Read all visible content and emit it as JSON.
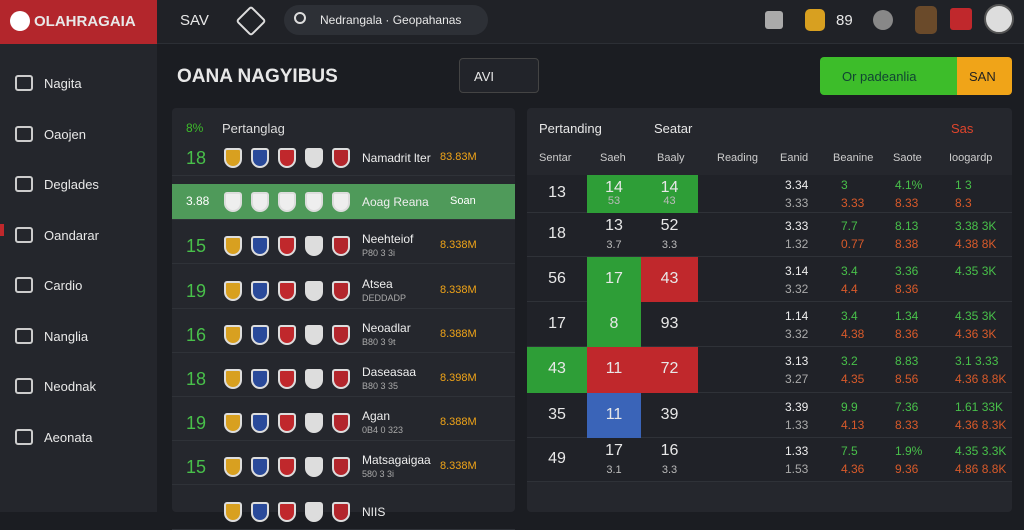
{
  "header": {
    "logo": "OLAHRAGAIA",
    "nav": "SAV",
    "search": "Nedrangala · Geopahanas",
    "badge": "89"
  },
  "sidebar": [
    "Nagita",
    "Oaojen",
    "Deglades",
    "Oandarar",
    "Cardio",
    "Nanglia",
    "Neodnak",
    "Aeonata"
  ],
  "page": {
    "title": "OANA NAGYIBUS",
    "center_button": "AVI",
    "primary_button": "Or padeanlia",
    "secondary_button": "SAN"
  },
  "left_panel": {
    "header": {
      "badge": "8%",
      "title": "Pertanglag"
    },
    "rows": [
      {
        "num": "18",
        "name": "Namadrit lter",
        "odds": "83.83M"
      },
      {
        "num": "3.88",
        "name": "Aoag Reana",
        "odds": "Soan"
      },
      {
        "num": "15",
        "name": "Neehteiof",
        "sub": "P80 3 3i",
        "odds": "8.338M"
      },
      {
        "num": "19",
        "name": "Atsea",
        "sub": "DEDDADP",
        "odds": "8.338M"
      },
      {
        "num": "16",
        "name": "Neoadlar",
        "sub": "B80 3 9t",
        "odds": "8.388M"
      },
      {
        "num": "18",
        "name": "Daseasaa",
        "sub": "B80 3 35",
        "odds": "8.398M"
      },
      {
        "num": "19",
        "name": "Agan",
        "sub": "0B4 0 323",
        "odds": "8.388M"
      },
      {
        "num": "15",
        "name": "Matsagaigaa",
        "sub": "580 3 3i",
        "odds": "8.338M"
      },
      {
        "name": "NIIS"
      }
    ]
  },
  "right_panel": {
    "header": {
      "title": "Pertanding",
      "subtitle": "Seatar",
      "action": "Sas"
    },
    "columns": [
      "Sentar",
      "Saeh",
      "Baaly",
      "Reading",
      "Eanid",
      "Beanine",
      "Saote",
      "Ioogardp"
    ],
    "rows": [
      {
        "rank": "13",
        "a": "14",
        "a_sub": "53",
        "a_color": "#2e9e37",
        "b": "14",
        "b_sub": "43",
        "b_color": "#2e9e37",
        "c": [
          "3.34",
          "3.33"
        ],
        "d": [
          "3",
          "3.33"
        ],
        "e": [
          "4.1%",
          "8.33"
        ],
        "f": [
          "1 3",
          "8.3"
        ]
      },
      {
        "rank": "18",
        "a": "13",
        "a_sub": "3.7",
        "b": "52",
        "b_sub": "3.3",
        "c": [
          "3.33",
          "1.32"
        ],
        "d": [
          "7.7",
          "0.77"
        ],
        "e": [
          "8.13",
          "8.38"
        ],
        "f": [
          "3.38 3K",
          "4.38 8K"
        ]
      },
      {
        "rank": "56",
        "a": "17",
        "a_color": "#2e9e37",
        "b": "43",
        "b_color": "#c0282c",
        "c": [
          "3.14",
          "3.32"
        ],
        "d": [
          "3.4",
          "4.4"
        ],
        "e": [
          "3.36",
          "8.36"
        ],
        "f": [
          "4.35 3K"
        ]
      },
      {
        "rank": "17",
        "a": "8",
        "a_color": "#2e9e37",
        "b": "93",
        "c": [
          "1.14",
          "3.32"
        ],
        "d": [
          "3.4",
          "4.38"
        ],
        "e": [
          "1.34",
          "8.36"
        ],
        "f": [
          "4.35 3K",
          "4.36 3K"
        ]
      },
      {
        "rank": "43",
        "rank_color": "#2e9e37",
        "a": "11",
        "a_color": "#c0282c",
        "b": "72",
        "b_color": "#c0282c",
        "c": [
          "3.13",
          "3.27"
        ],
        "d": [
          "3.2",
          "4.35"
        ],
        "e": [
          "8.83",
          "8.56"
        ],
        "f": [
          "3.1 3.33",
          "4.36 8.8K"
        ]
      },
      {
        "rank": "35",
        "a": "11",
        "a_color": "#3a64b8",
        "b": "39",
        "c": [
          "3.39",
          "1.33"
        ],
        "d": [
          "9.9",
          "4.13"
        ],
        "e": [
          "7.36",
          "8.33"
        ],
        "f": [
          "1.61 33K",
          "4.36 8.3K"
        ]
      },
      {
        "rank": "49",
        "a": "17",
        "a_sub": "3.1",
        "b": "16",
        "b_sub": "3.3",
        "c": [
          "1.33",
          "1.53"
        ],
        "d": [
          "7.5",
          "4.36"
        ],
        "e": [
          "1.9%",
          "9.36"
        ],
        "f": [
          "4.35 3.3K",
          "4.86 8.8K"
        ]
      }
    ]
  }
}
